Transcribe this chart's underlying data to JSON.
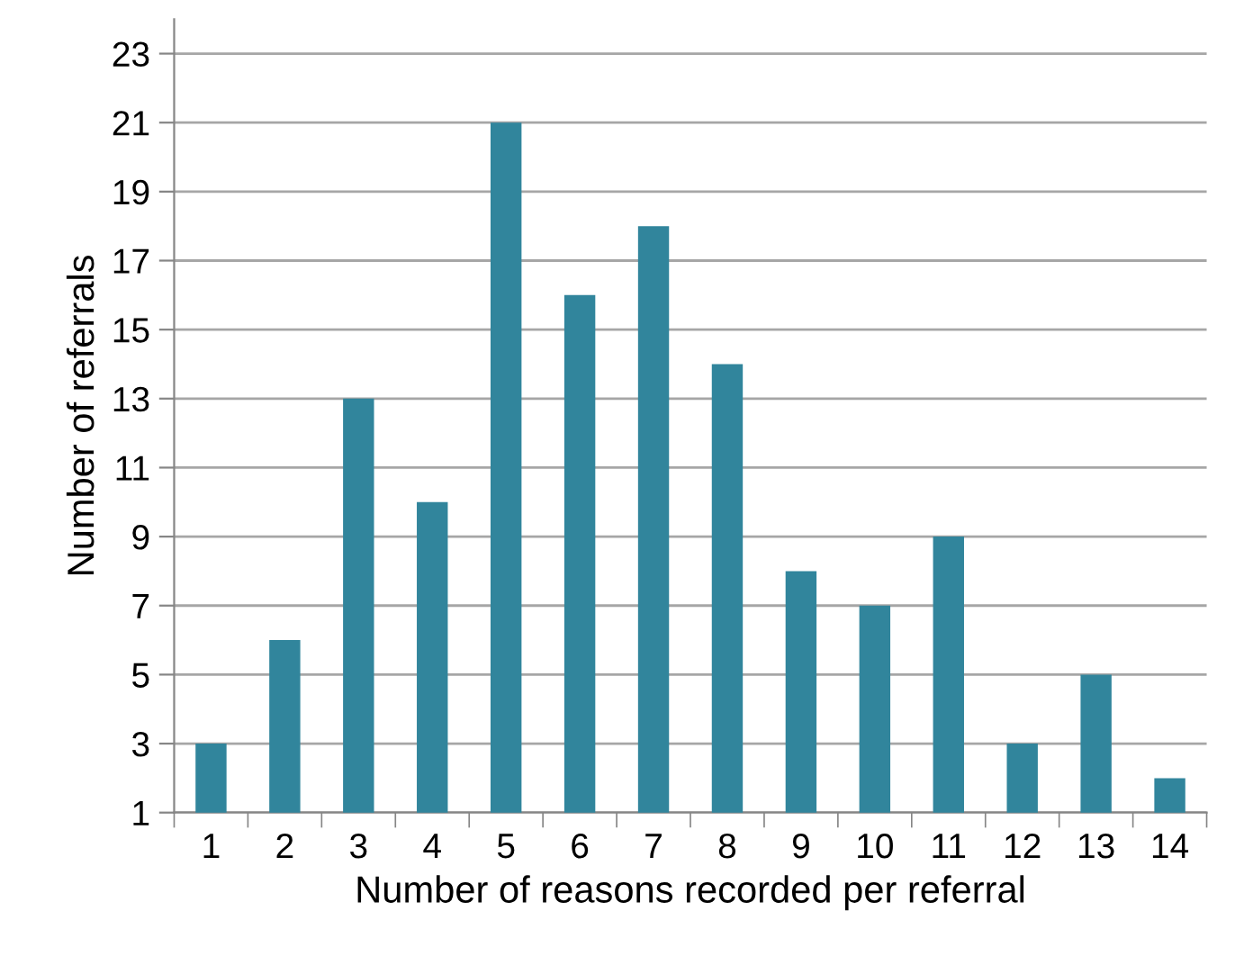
{
  "chart_data": {
    "type": "bar",
    "xlabel": "Number of reasons recorded per referral",
    "ylabel": "Number of referrals",
    "categories": [
      "1",
      "2",
      "3",
      "4",
      "5",
      "6",
      "7",
      "8",
      "9",
      "10",
      "11",
      "12",
      "13",
      "14"
    ],
    "values": [
      3,
      6,
      13,
      10,
      21,
      16,
      18,
      14,
      8,
      7,
      9,
      3,
      5,
      2
    ],
    "color": "#31859c",
    "ylim": [
      1,
      24
    ],
    "yticks": [
      1,
      3,
      5,
      7,
      9,
      11,
      13,
      15,
      17,
      19,
      21,
      23
    ],
    "grid": "y"
  }
}
